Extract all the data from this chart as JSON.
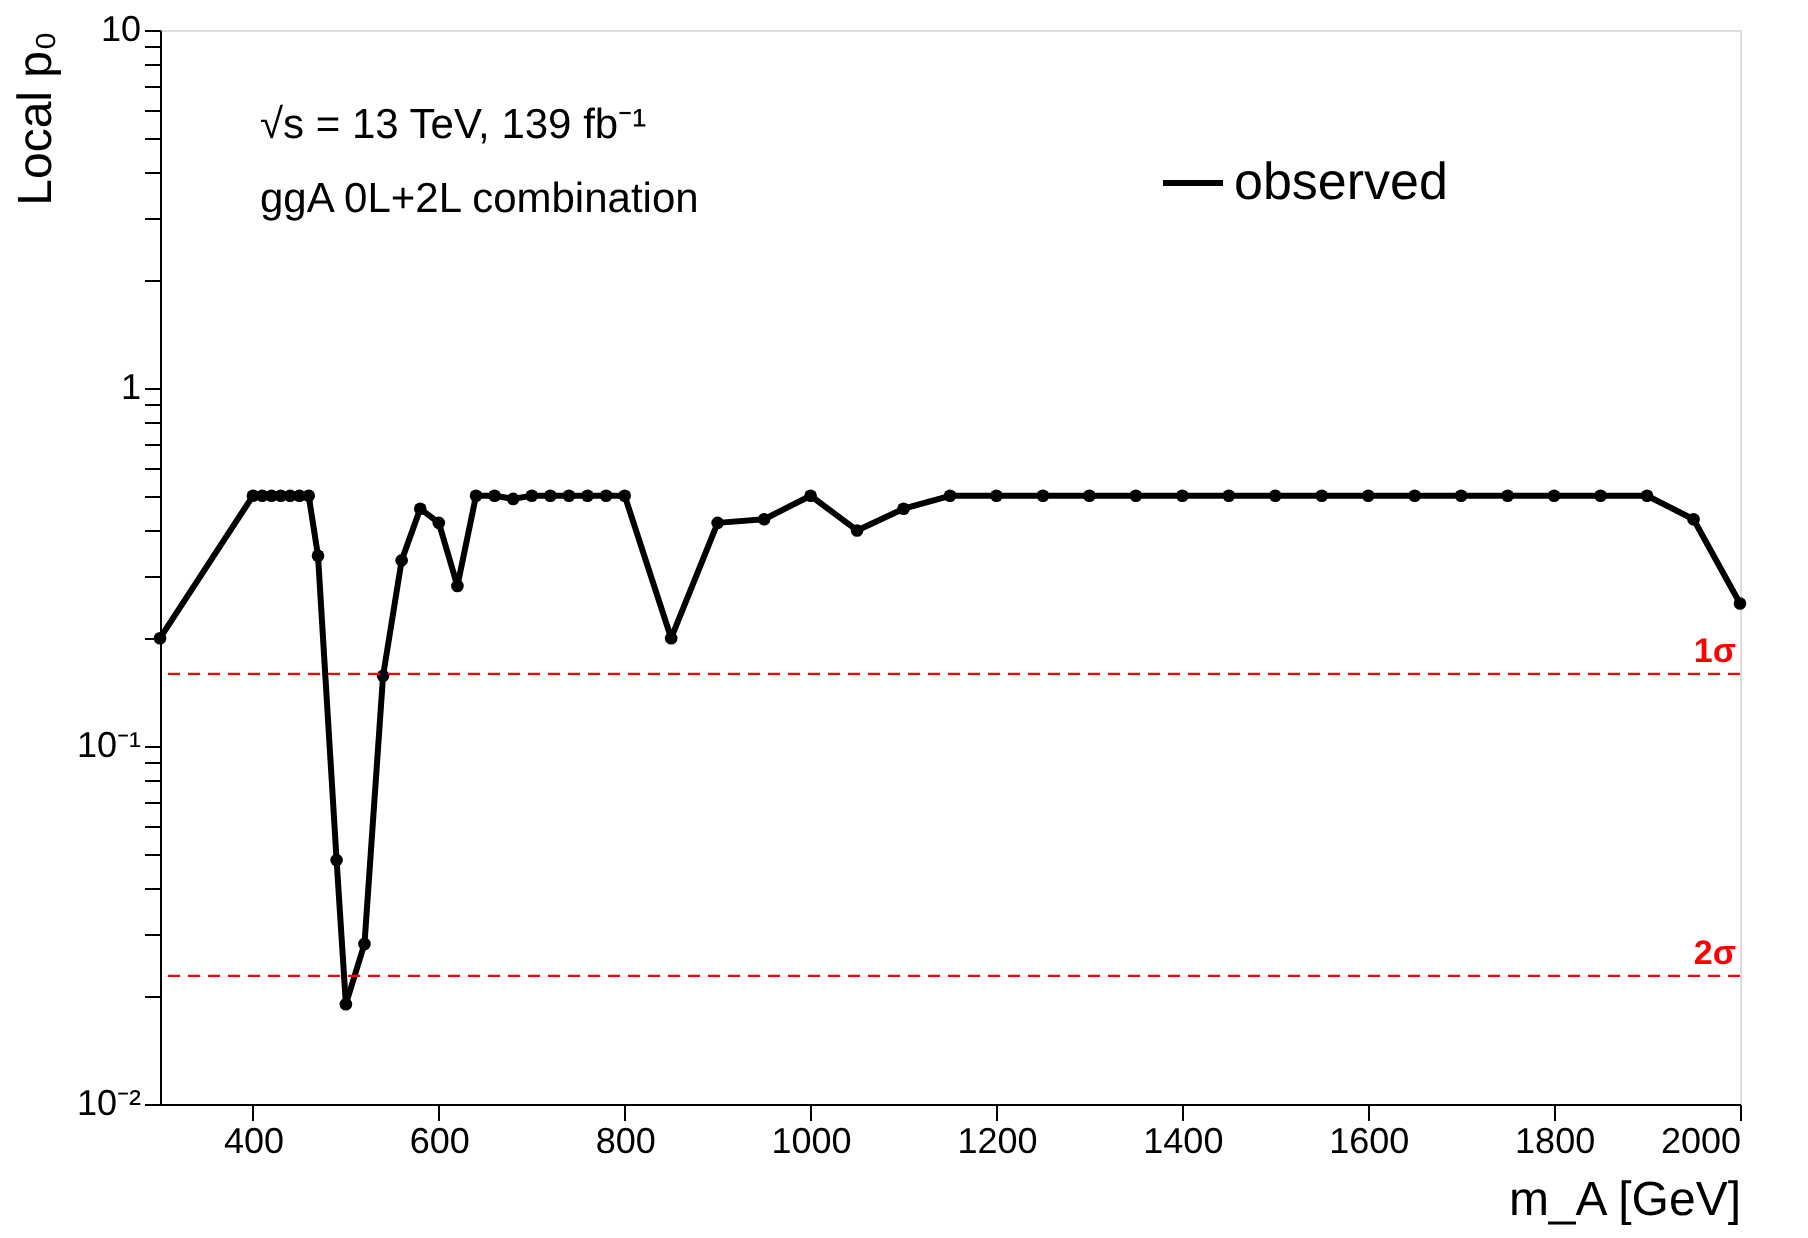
{
  "chart_data": {
    "type": "line",
    "xlabel": "m_A [GeV]",
    "ylabel": "Local p₀",
    "annotations": [
      "√s = 13 TeV, 139 fb⁻¹",
      "ggA 0L+2L combination"
    ],
    "log": true,
    "grid": false,
    "legend": "top right",
    "marker": "circle",
    "line_style": "solid",
    "xlim": [
      300,
      2000
    ],
    "xticks": [
      400,
      600,
      800,
      1000,
      1200,
      1400,
      1600,
      1800,
      2000
    ],
    "ylim": [
      0.01,
      10
    ],
    "yticks": [
      {
        "value": 0.01,
        "label": "10⁻²"
      },
      {
        "value": 0.02,
        "label": null
      },
      {
        "value": 0.03,
        "label": null
      },
      {
        "value": 0.04,
        "label": null
      },
      {
        "value": 0.05,
        "label": null
      },
      {
        "value": 0.06,
        "label": null
      },
      {
        "value": 0.07,
        "label": null
      },
      {
        "value": 0.08,
        "label": null
      },
      {
        "value": 0.09,
        "label": null
      },
      {
        "value": 0.1,
        "label": "10⁻¹"
      },
      {
        "value": 0.2,
        "label": null
      },
      {
        "value": 0.3,
        "label": null
      },
      {
        "value": 0.4,
        "label": null
      },
      {
        "value": 0.5,
        "label": null
      },
      {
        "value": 0.6,
        "label": null
      },
      {
        "value": 0.7,
        "label": null
      },
      {
        "value": 0.8,
        "label": null
      },
      {
        "value": 0.9,
        "label": null
      },
      1,
      {
        "value": 2,
        "label": null
      },
      {
        "value": 3,
        "label": null
      },
      {
        "value": 4,
        "label": null
      },
      {
        "value": 5,
        "label": null
      },
      {
        "value": 6,
        "label": null
      },
      {
        "value": 7,
        "label": null
      },
      {
        "value": 8,
        "label": null
      },
      {
        "value": 9,
        "label": null
      },
      10
    ],
    "ref_lines": [
      {
        "axis": "y",
        "value": 0.159,
        "label": "1σ",
        "color": "#ff0000",
        "line_style": "dashed"
      },
      {
        "axis": "y",
        "value": 0.0228,
        "label": "2σ",
        "color": "#ff0000",
        "line_style": "dashed"
      }
    ],
    "series": [
      {
        "name": "observed",
        "color": "#000000",
        "x": [
          300,
          400,
          410,
          420,
          430,
          440,
          450,
          460,
          470,
          490,
          500,
          520,
          540,
          560,
          580,
          600,
          620,
          640,
          660,
          680,
          700,
          720,
          740,
          760,
          780,
          800,
          850,
          900,
          950,
          1000,
          1050,
          1100,
          1150,
          1200,
          1250,
          1300,
          1350,
          1400,
          1450,
          1500,
          1550,
          1600,
          1650,
          1700,
          1750,
          1800,
          1850,
          1900,
          1950,
          2000
        ],
        "values": [
          0.2,
          0.5,
          0.5,
          0.5,
          0.5,
          0.5,
          0.5,
          0.5,
          0.34,
          0.048,
          0.019,
          0.028,
          0.157,
          0.33,
          0.46,
          0.42,
          0.28,
          0.5,
          0.5,
          0.49,
          0.5,
          0.5,
          0.5,
          0.5,
          0.5,
          0.5,
          0.2,
          0.42,
          0.43,
          0.5,
          0.4,
          0.46,
          0.5,
          0.5,
          0.5,
          0.5,
          0.5,
          0.5,
          0.5,
          0.5,
          0.5,
          0.5,
          0.5,
          0.5,
          0.5,
          0.5,
          0.5,
          0.5,
          0.43,
          0.25
        ]
      }
    ]
  }
}
